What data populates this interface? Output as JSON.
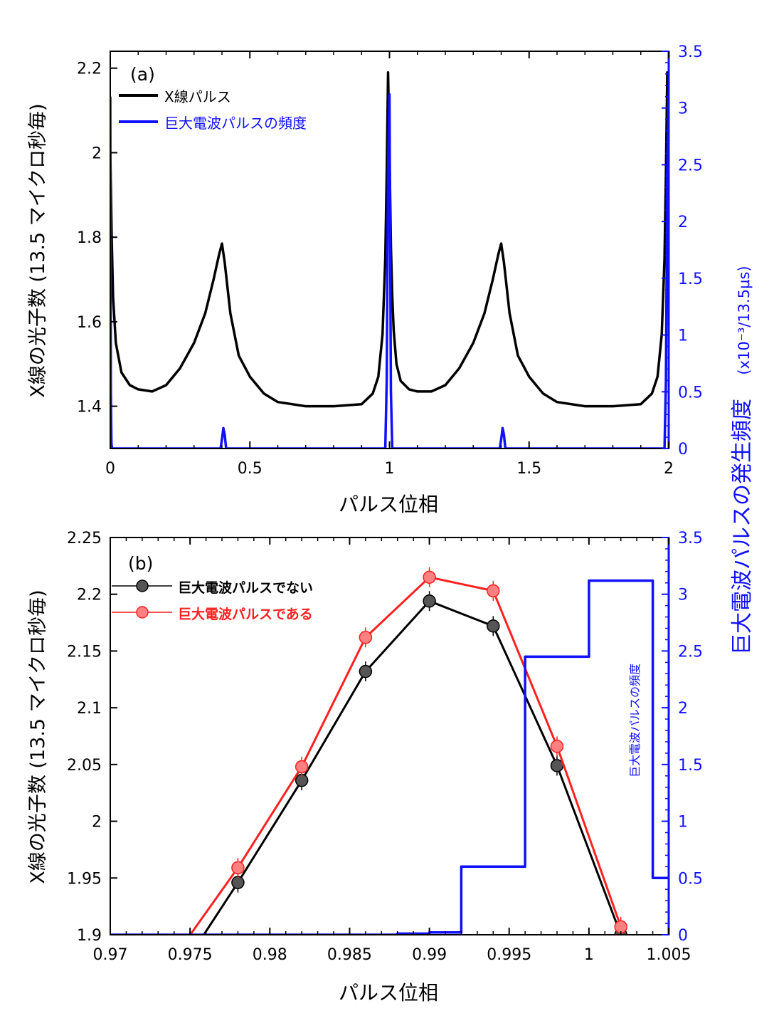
{
  "colors": {
    "xray": "#000000",
    "gp_freq": "#1010ff",
    "no_gp": "#000000",
    "with_gp": "#ff2020",
    "marker_gray": "#555555",
    "marker_red": "#ff8080"
  },
  "shared": {
    "left_axis_label": "X線の光子数 (13.5 マイクロ秒毎)",
    "right_axis_label": "巨大電波パルスの発生頻度",
    "right_axis_unit": "(x10⁻³/13.5μs)"
  },
  "chart_data": [
    {
      "type": "line",
      "panel_label": "(a)",
      "xlabel": "パルス位相",
      "xlim": [
        0,
        2
      ],
      "xticks": [
        0,
        0.5,
        1,
        1.5,
        2
      ],
      "xtick_labels": [
        "0",
        "0.5",
        "1",
        "1.5",
        "2"
      ],
      "ylim_left": [
        1.3,
        2.24
      ],
      "yticks_left": [
        1.4,
        1.6,
        1.8,
        2.0,
        2.2
      ],
      "ytick_labels_left": [
        "1.4",
        "1.6",
        "1.8",
        "2",
        "2.2"
      ],
      "ylim_right": [
        0,
        3.5
      ],
      "yticks_right": [
        0,
        0.5,
        1,
        1.5,
        2,
        2.5,
        3,
        3.5
      ],
      "ytick_labels_right": [
        "0",
        "0.5",
        "1",
        "1.5",
        "2",
        "2.5",
        "3",
        "3.5"
      ],
      "legend_position": "top-left",
      "series": [
        {
          "name": "X線パルス",
          "axis": "left",
          "x": [
            0,
            0.005,
            0.01,
            0.02,
            0.04,
            0.07,
            0.1,
            0.15,
            0.2,
            0.25,
            0.3,
            0.34,
            0.37,
            0.39,
            0.4,
            0.41,
            0.43,
            0.46,
            0.5,
            0.55,
            0.6,
            0.7,
            0.8,
            0.9,
            0.94,
            0.96,
            0.975,
            0.985,
            0.99,
            0.995,
            1.0,
            1.005,
            1.01,
            1.015,
            1.025,
            1.04,
            1.07,
            1.1,
            1.15,
            1.2,
            1.25,
            1.3,
            1.34,
            1.37,
            1.39,
            1.4,
            1.41,
            1.43,
            1.46,
            1.5,
            1.55,
            1.6,
            1.7,
            1.8,
            1.9,
            1.94,
            1.96,
            1.975,
            1.985,
            1.99,
            1.995,
            2.0
          ],
          "values": [
            2.0,
            1.8,
            1.66,
            1.55,
            1.48,
            1.45,
            1.44,
            1.435,
            1.45,
            1.49,
            1.55,
            1.62,
            1.7,
            1.76,
            1.785,
            1.74,
            1.62,
            1.52,
            1.47,
            1.43,
            1.41,
            1.4,
            1.4,
            1.405,
            1.43,
            1.47,
            1.57,
            1.75,
            1.95,
            2.19,
            2.0,
            1.78,
            1.66,
            1.58,
            1.5,
            1.46,
            1.44,
            1.435,
            1.435,
            1.45,
            1.49,
            1.55,
            1.62,
            1.7,
            1.76,
            1.785,
            1.74,
            1.62,
            1.52,
            1.47,
            1.43,
            1.41,
            1.4,
            1.4,
            1.405,
            1.43,
            1.47,
            1.57,
            1.75,
            1.95,
            2.19,
            2.0
          ]
        },
        {
          "name": "巨大電波パルスの頻度",
          "axis": "right",
          "x": [
            0,
            0.002,
            0.004,
            0.006,
            0.008,
            0.395,
            0.4,
            0.405,
            0.41,
            0.415,
            0.985,
            0.99,
            0.995,
            1.0,
            1.005,
            1.01,
            1.395,
            1.4,
            1.405,
            1.41,
            1.415,
            1.985,
            1.99,
            1.995,
            2.0
          ],
          "values": [
            3.1,
            0.5,
            0.05,
            0,
            0,
            0,
            0.08,
            0.18,
            0.12,
            0,
            0,
            0.6,
            2.45,
            3.12,
            0.5,
            0,
            0,
            0.08,
            0.18,
            0.12,
            0,
            0,
            0.6,
            2.45,
            3.12
          ]
        }
      ]
    },
    {
      "type": "line",
      "panel_label": "(b)",
      "xlabel": "パルス位相",
      "xlim": [
        0.97,
        1.005
      ],
      "xticks": [
        0.97,
        0.975,
        0.98,
        0.985,
        0.99,
        0.995,
        1.0,
        1.005
      ],
      "xtick_labels": [
        "0.97",
        "0.975",
        "0.98",
        "0.985",
        "0.99",
        "0.995",
        "1",
        "1.005"
      ],
      "ylim_left": [
        1.9,
        2.25
      ],
      "yticks_left": [
        1.9,
        1.95,
        2.0,
        2.05,
        2.1,
        2.15,
        2.2,
        2.25
      ],
      "ytick_labels_left": [
        "1.9",
        "1.95",
        "2",
        "2.05",
        "2.1",
        "2.15",
        "2.2",
        "2.25"
      ],
      "ylim_right": [
        0,
        3.5
      ],
      "yticks_right": [
        0,
        0.5,
        1,
        1.5,
        2,
        2.5,
        3,
        3.5
      ],
      "ytick_labels_right": [
        "0",
        "0.5",
        "1",
        "1.5",
        "2",
        "2.5",
        "3",
        "3.5"
      ],
      "legend_position": "top-left",
      "annotation": "巨大電波パルスの頻度",
      "series": [
        {
          "name": "巨大電波パルスでない",
          "axis": "left",
          "x": [
            0.974,
            0.978,
            0.982,
            0.986,
            0.99,
            0.994,
            0.998,
            1.002
          ],
          "values": [
            1.86,
            1.946,
            2.036,
            2.132,
            2.194,
            2.172,
            2.049,
            1.9
          ]
        },
        {
          "name": "巨大電波パルスである",
          "axis": "left",
          "x": [
            0.974,
            0.978,
            0.982,
            0.986,
            0.99,
            0.994,
            0.998,
            1.002
          ],
          "values": [
            1.88,
            1.959,
            2.048,
            2.162,
            2.215,
            2.203,
            2.066,
            1.907
          ]
        },
        {
          "name": "巨大電波パルスの頻度",
          "axis": "right",
          "type": "step",
          "edges": [
            0.97,
            0.974,
            0.978,
            0.982,
            0.986,
            0.988,
            0.99,
            0.992,
            0.996,
            1.0,
            1.004,
            1.005
          ],
          "values": [
            0,
            0,
            0,
            0,
            0,
            0.01,
            0.02,
            0.6,
            2.45,
            3.12,
            0.5
          ]
        }
      ]
    }
  ]
}
